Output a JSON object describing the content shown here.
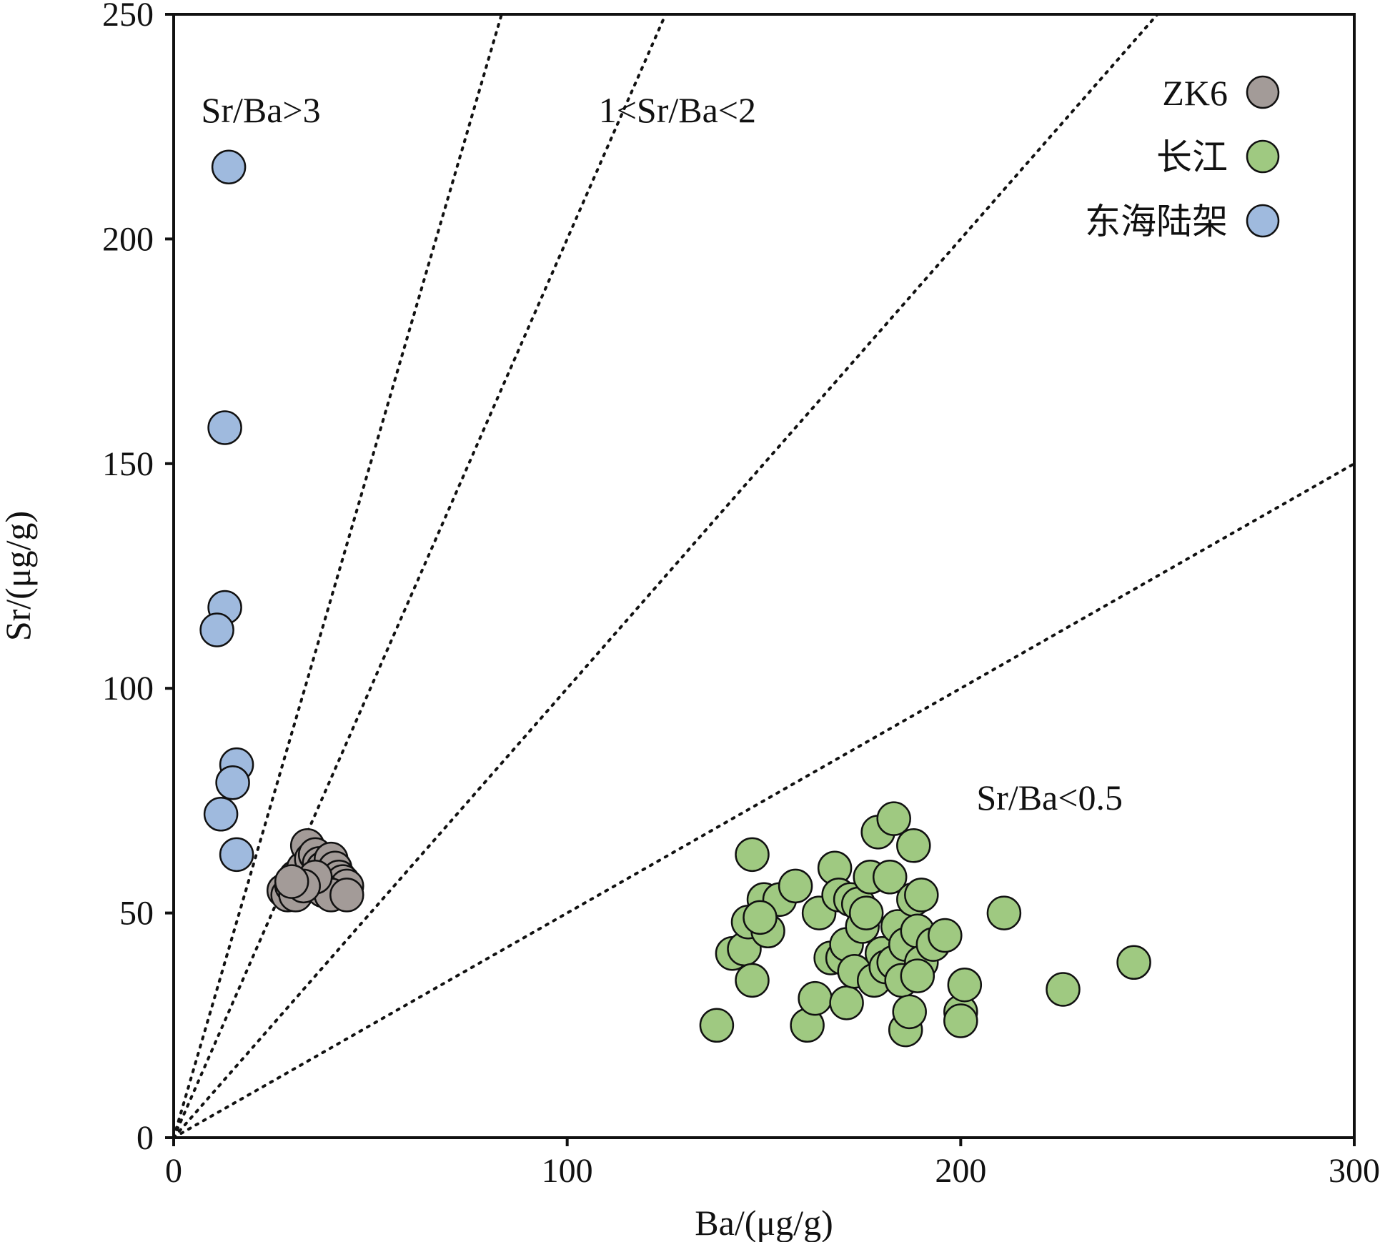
{
  "chart_data": {
    "type": "scatter",
    "xlabel": "Ba/(μg/g)",
    "ylabel": "Sr/(μg/g)",
    "xlim": [
      0,
      300
    ],
    "ylim": [
      0,
      250
    ],
    "xticks": [
      "0",
      "100",
      "200",
      "300"
    ],
    "yticks": [
      "0",
      "50",
      "100",
      "150",
      "200",
      "250"
    ],
    "grid": false,
    "legend_position": "top-right",
    "reference_lines": [
      {
        "slope": 3
      },
      {
        "slope": 2
      },
      {
        "slope": 1
      },
      {
        "slope": 0.5
      }
    ],
    "annotations": [
      {
        "text": "Sr/Ba>3",
        "x": 7,
        "y": 226
      },
      {
        "text": "1<Sr/Ba<2",
        "x": 108,
        "y": 226
      },
      {
        "text": "Sr/Ba<0.5",
        "x": 204,
        "y": 73
      }
    ],
    "series": [
      {
        "name": "ZK6",
        "color": "#a39b98",
        "points": [
          [
            28,
            55
          ],
          [
            29,
            54
          ],
          [
            30,
            56
          ],
          [
            31,
            58
          ],
          [
            31,
            54
          ],
          [
            32,
            57
          ],
          [
            33,
            60
          ],
          [
            34,
            65
          ],
          [
            35,
            62
          ],
          [
            36,
            63
          ],
          [
            37,
            61
          ],
          [
            38,
            60
          ],
          [
            39,
            59
          ],
          [
            40,
            62
          ],
          [
            41,
            60
          ],
          [
            42,
            58
          ],
          [
            43,
            57
          ],
          [
            44,
            56
          ],
          [
            38,
            55
          ],
          [
            40,
            54
          ],
          [
            44,
            54
          ],
          [
            36,
            58
          ],
          [
            33,
            56
          ],
          [
            30,
            57
          ]
        ]
      },
      {
        "name": "长江",
        "color": "#9fc981",
        "points": [
          [
            138,
            25
          ],
          [
            142,
            41
          ],
          [
            145,
            42
          ],
          [
            146,
            48
          ],
          [
            147,
            35
          ],
          [
            147,
            63
          ],
          [
            150,
            53
          ],
          [
            151,
            46
          ],
          [
            154,
            53
          ],
          [
            158,
            56
          ],
          [
            161,
            25
          ],
          [
            163,
            31
          ],
          [
            164,
            50
          ],
          [
            167,
            40
          ],
          [
            168,
            60
          ],
          [
            169,
            54
          ],
          [
            170,
            40
          ],
          [
            171,
            43
          ],
          [
            171,
            30
          ],
          [
            172,
            53
          ],
          [
            173,
            37
          ],
          [
            174,
            52
          ],
          [
            175,
            47
          ],
          [
            176,
            50
          ],
          [
            177,
            58
          ],
          [
            178,
            35
          ],
          [
            179,
            68
          ],
          [
            180,
            41
          ],
          [
            181,
            38
          ],
          [
            182,
            58
          ],
          [
            183,
            71
          ],
          [
            183,
            39
          ],
          [
            184,
            47
          ],
          [
            185,
            35
          ],
          [
            186,
            43
          ],
          [
            186,
            24
          ],
          [
            187,
            28
          ],
          [
            188,
            53
          ],
          [
            188,
            65
          ],
          [
            189,
            46
          ],
          [
            190,
            54
          ],
          [
            190,
            39
          ],
          [
            193,
            43
          ],
          [
            196,
            45
          ],
          [
            200,
            28
          ],
          [
            200,
            26
          ],
          [
            201,
            34
          ],
          [
            211,
            50
          ],
          [
            226,
            33
          ],
          [
            244,
            39
          ],
          [
            149,
            49
          ],
          [
            189,
            36
          ]
        ]
      },
      {
        "name": "东海陆架",
        "color": "#9fbade",
        "points": [
          [
            14,
            216
          ],
          [
            13,
            158
          ],
          [
            13,
            118
          ],
          [
            11,
            113
          ],
          [
            16,
            83
          ],
          [
            15,
            79
          ],
          [
            12,
            72
          ],
          [
            16,
            63
          ]
        ]
      }
    ]
  }
}
